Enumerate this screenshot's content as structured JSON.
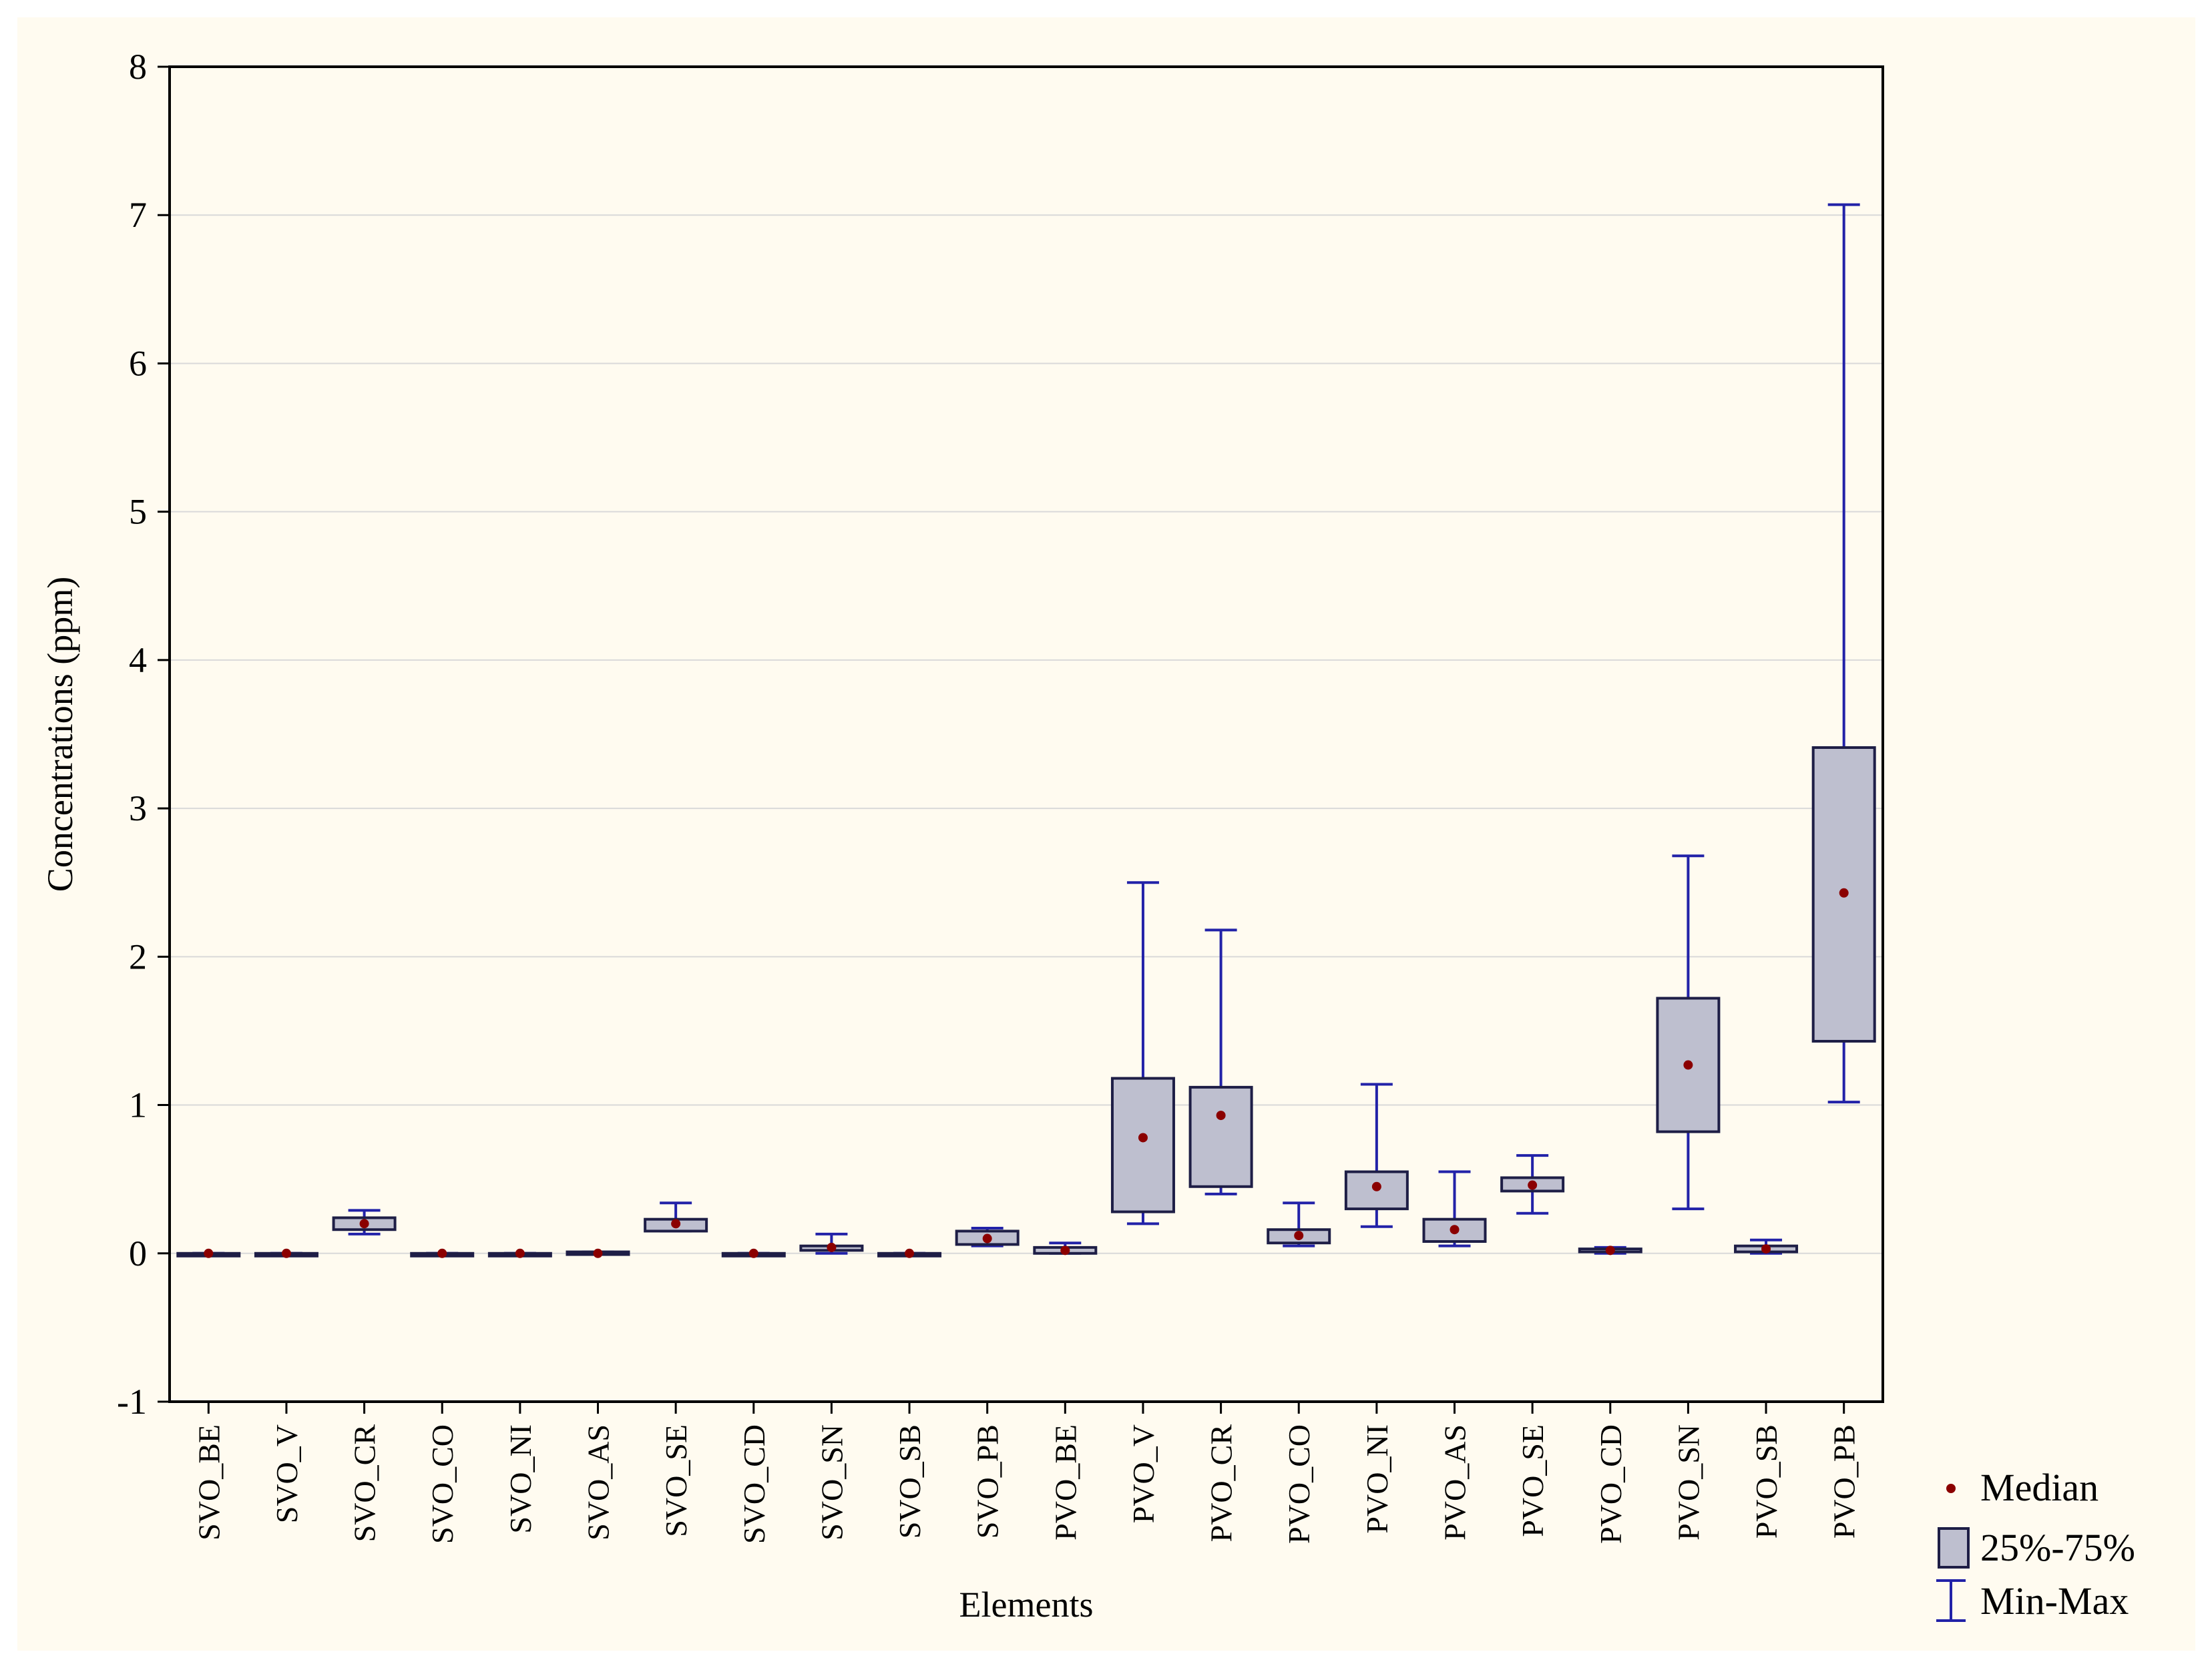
{
  "chart_data": {
    "type": "boxplot",
    "xlabel": "Elements",
    "ylabel": "Concentrations (ppm)",
    "ylim": [
      -1,
      8
    ],
    "yticks": [
      -1,
      0,
      1,
      2,
      3,
      4,
      5,
      6,
      7,
      8
    ],
    "grid": true,
    "legend_position": "bottom-right",
    "legend": [
      {
        "key": "median",
        "label": "Median"
      },
      {
        "key": "iqr",
        "label": "25%-75%"
      },
      {
        "key": "range",
        "label": "Min-Max"
      }
    ],
    "colors": {
      "box_fill": "#bebfcf",
      "box_edge": "#1e1e46",
      "whisker": "#2222a8",
      "median": "#8b0000",
      "grid": "#d9d9d9"
    },
    "categories": [
      "SVO_BE",
      "SVO_V",
      "SVO_CR",
      "SVO_CO",
      "SVO_NI",
      "SVO_AS",
      "SVO_SE",
      "SVO_CD",
      "SVO_SN",
      "SVO_SB",
      "SVO_PB",
      "PVO_BE",
      "PVO_V",
      "PVO_CR",
      "PVO_CO",
      "PVO_NI",
      "PVO_AS",
      "PVO_SE",
      "PVO_CD",
      "PVO_SN",
      "PVO_SB",
      "PVO_PB"
    ],
    "stats": [
      {
        "min": 0.0,
        "q1": 0.0,
        "median": 0.0,
        "q3": 0.0,
        "max": 0.0
      },
      {
        "min": 0.0,
        "q1": 0.0,
        "median": 0.0,
        "q3": 0.0,
        "max": 0.0
      },
      {
        "min": 0.13,
        "q1": 0.16,
        "median": 0.2,
        "q3": 0.24,
        "max": 0.29
      },
      {
        "min": 0.0,
        "q1": 0.0,
        "median": 0.0,
        "q3": 0.0,
        "max": 0.0
      },
      {
        "min": 0.0,
        "q1": 0.0,
        "median": 0.0,
        "q3": 0.0,
        "max": 0.0
      },
      {
        "min": 0.0,
        "q1": 0.0,
        "median": 0.0,
        "q3": 0.01,
        "max": 0.01
      },
      {
        "min": 0.15,
        "q1": 0.15,
        "median": 0.2,
        "q3": 0.23,
        "max": 0.34
      },
      {
        "min": 0.0,
        "q1": 0.0,
        "median": 0.0,
        "q3": 0.0,
        "max": 0.0
      },
      {
        "min": 0.0,
        "q1": 0.02,
        "median": 0.04,
        "q3": 0.05,
        "max": 0.13
      },
      {
        "min": 0.0,
        "q1": 0.0,
        "median": 0.0,
        "q3": 0.0,
        "max": 0.0
      },
      {
        "min": 0.05,
        "q1": 0.06,
        "median": 0.1,
        "q3": 0.15,
        "max": 0.17
      },
      {
        "min": 0.0,
        "q1": 0.0,
        "median": 0.02,
        "q3": 0.04,
        "max": 0.07
      },
      {
        "min": 0.2,
        "q1": 0.28,
        "median": 0.78,
        "q3": 1.18,
        "max": 2.5
      },
      {
        "min": 0.4,
        "q1": 0.45,
        "median": 0.93,
        "q3": 1.12,
        "max": 2.18
      },
      {
        "min": 0.05,
        "q1": 0.07,
        "median": 0.12,
        "q3": 0.16,
        "max": 0.34
      },
      {
        "min": 0.18,
        "q1": 0.3,
        "median": 0.45,
        "q3": 0.55,
        "max": 1.14
      },
      {
        "min": 0.05,
        "q1": 0.08,
        "median": 0.16,
        "q3": 0.23,
        "max": 0.55
      },
      {
        "min": 0.27,
        "q1": 0.42,
        "median": 0.46,
        "q3": 0.51,
        "max": 0.66
      },
      {
        "min": 0.0,
        "q1": 0.01,
        "median": 0.02,
        "q3": 0.03,
        "max": 0.04
      },
      {
        "min": 0.3,
        "q1": 0.82,
        "median": 1.27,
        "q3": 1.72,
        "max": 2.68
      },
      {
        "min": 0.0,
        "q1": 0.01,
        "median": 0.03,
        "q3": 0.05,
        "max": 0.09
      },
      {
        "min": 1.02,
        "q1": 1.43,
        "median": 2.43,
        "q3": 3.41,
        "max": 7.07
      }
    ]
  }
}
